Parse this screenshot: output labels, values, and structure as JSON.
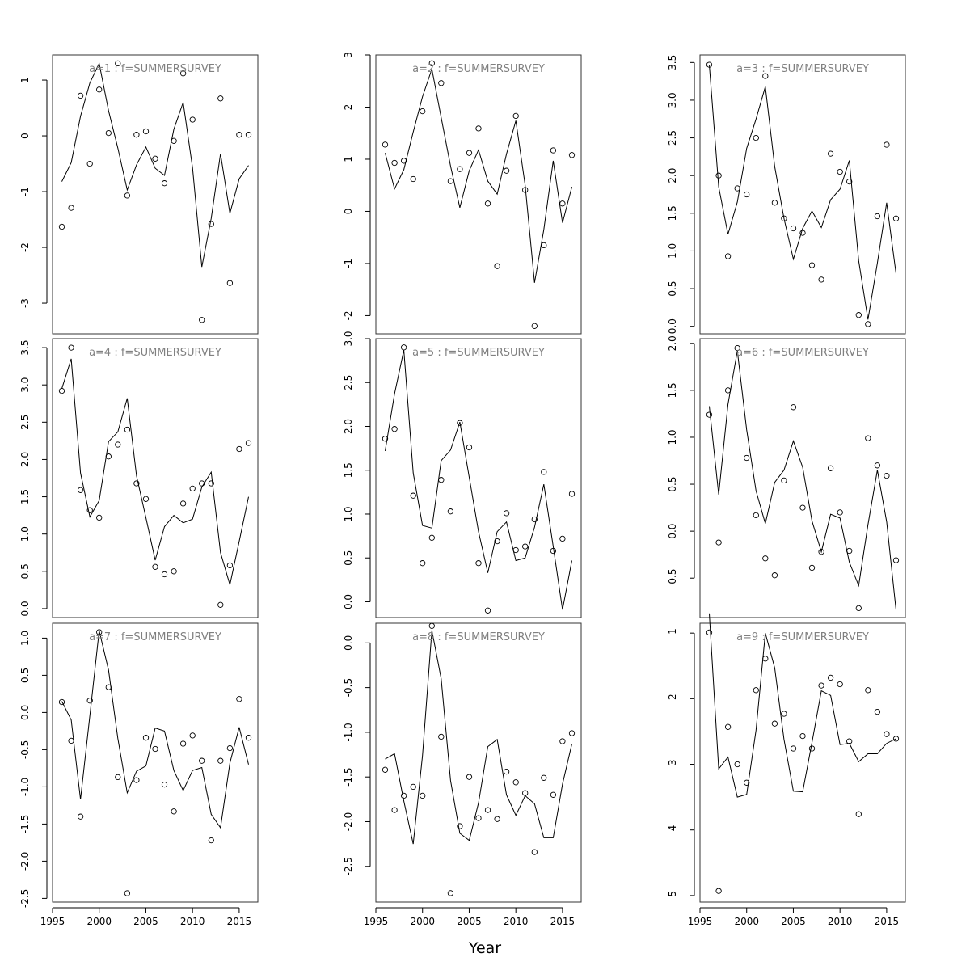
{
  "figure": {
    "xlabel": "Year"
  },
  "chart_data": [
    {
      "type": "line",
      "title": "a=1  :  f=SUMMERSURVEY",
      "xlabel": "",
      "ylabel": "",
      "xlim": [
        1995,
        2017
      ],
      "ylim": [
        -3.55,
        1.45
      ],
      "xticks": [
        1995,
        2000,
        2005,
        2010,
        2015
      ],
      "yticks": [
        -3,
        -2,
        -1,
        0,
        1
      ],
      "ytick_labels": [
        "-3",
        "-2",
        "-1",
        "0",
        "1"
      ],
      "x": [
        1996,
        1997,
        1998,
        1999,
        2000,
        2001,
        2002,
        2003,
        2004,
        2005,
        2006,
        2007,
        2008,
        2009,
        2010,
        2011,
        2012,
        2013,
        2014,
        2015,
        2016
      ],
      "series": [
        {
          "kind": "points",
          "values": [
            -1.63,
            -1.29,
            0.72,
            -0.5,
            0.83,
            0.05,
            1.3,
            -1.07,
            0.02,
            0.08,
            -0.41,
            -0.85,
            -0.09,
            1.12,
            0.29,
            -3.3,
            -1.58,
            0.67,
            -2.64,
            0.02,
            0.02
          ]
        },
        {
          "kind": "line",
          "values": [
            -0.82,
            -0.48,
            0.35,
            0.95,
            1.3,
            0.45,
            -0.22,
            -0.97,
            -0.52,
            -0.2,
            -0.58,
            -0.71,
            0.12,
            0.6,
            -0.57,
            -2.35,
            -1.48,
            -0.32,
            -1.39,
            -0.77,
            -0.53
          ]
        }
      ]
    },
    {
      "type": "line",
      "title": "a=4  :  f=SUMMERSURVEY",
      "xlabel": "",
      "ylabel": "",
      "xlim": [
        1995,
        2017
      ],
      "ylim": [
        -0.12,
        3.62
      ],
      "xticks": [
        1995,
        2000,
        2005,
        2010,
        2015
      ],
      "yticks": [
        0.0,
        0.5,
        1.0,
        1.5,
        2.0,
        2.5,
        3.0,
        3.5
      ],
      "ytick_labels": [
        "0.0",
        "0.5",
        "1.0",
        "1.5",
        "2.0",
        "2.5",
        "3.0",
        "3.5"
      ],
      "x": [
        1996,
        1997,
        1998,
        1999,
        2000,
        2001,
        2002,
        2003,
        2004,
        2005,
        2006,
        2007,
        2008,
        2009,
        2010,
        2011,
        2012,
        2013,
        2014,
        2015,
        2016
      ],
      "series": [
        {
          "kind": "points",
          "values": [
            2.92,
            3.5,
            1.59,
            1.32,
            1.22,
            2.04,
            2.2,
            2.4,
            1.68,
            1.47,
            0.56,
            0.46,
            0.5,
            1.41,
            1.61,
            1.68,
            1.68,
            0.05,
            0.58,
            2.14,
            2.22
          ]
        },
        {
          "kind": "line",
          "values": [
            2.95,
            3.35,
            1.82,
            1.23,
            1.45,
            2.24,
            2.37,
            2.82,
            1.78,
            1.22,
            0.65,
            1.1,
            1.25,
            1.15,
            1.2,
            1.63,
            1.83,
            0.75,
            0.32,
            0.9,
            1.5
          ]
        }
      ]
    },
    {
      "type": "line",
      "title": "a=7  :  f=SUMMERSURVEY",
      "xlabel": "",
      "ylabel": "",
      "xlim": [
        1995,
        2017
      ],
      "ylim": [
        -2.55,
        1.2
      ],
      "xticks": [
        1995,
        2000,
        2005,
        2010,
        2015
      ],
      "yticks": [
        -2.5,
        -2.0,
        -1.5,
        -1.0,
        -0.5,
        0.0,
        0.5,
        1.0
      ],
      "ytick_labels": [
        "-2.5",
        "-2.0",
        "-1.5",
        "-1.0",
        "-0.5",
        "0.0",
        "0.5",
        "1.0"
      ],
      "x": [
        1996,
        1997,
        1998,
        1999,
        2000,
        2001,
        2002,
        2003,
        2004,
        2005,
        2006,
        2007,
        2008,
        2009,
        2010,
        2011,
        2012,
        2013,
        2014,
        2015,
        2016
      ],
      "series": [
        {
          "kind": "points",
          "values": [
            0.14,
            -0.38,
            -1.4,
            0.16,
            1.08,
            0.34,
            -0.87,
            -2.43,
            -0.91,
            -0.34,
            -0.49,
            -0.97,
            -1.33,
            -0.42,
            -0.31,
            -0.65,
            -1.72,
            -0.65,
            -0.48,
            0.18,
            -0.34
          ]
        },
        {
          "kind": "line",
          "values": [
            0.15,
            -0.1,
            -1.17,
            -0.04,
            1.1,
            0.57,
            -0.35,
            -1.08,
            -0.79,
            -0.72,
            -0.21,
            -0.25,
            -0.78,
            -1.05,
            -0.78,
            -0.74,
            -1.37,
            -1.55,
            -0.68,
            -0.2,
            -0.7
          ]
        }
      ]
    },
    {
      "type": "line",
      "title": "a=2  :  f=SUMMERSURVEY",
      "xlabel": "",
      "ylabel": "",
      "xlim": [
        1995,
        2017
      ],
      "ylim": [
        -2.35,
        3.0
      ],
      "xticks": [
        1995,
        2000,
        2005,
        2010,
        2015
      ],
      "yticks": [
        -2,
        -1,
        0,
        1,
        2,
        3
      ],
      "ytick_labels": [
        "-2",
        "-1",
        "0",
        "1",
        "2",
        "3"
      ],
      "x": [
        1996,
        1997,
        1998,
        1999,
        2000,
        2001,
        2002,
        2003,
        2004,
        2005,
        2006,
        2007,
        2008,
        2009,
        2010,
        2011,
        2012,
        2013,
        2014,
        2015,
        2016
      ],
      "series": [
        {
          "kind": "points",
          "values": [
            1.28,
            0.93,
            0.97,
            0.62,
            1.92,
            2.84,
            2.46,
            0.58,
            0.81,
            1.12,
            1.59,
            0.15,
            -1.05,
            0.78,
            1.83,
            0.41,
            -2.2,
            -0.65,
            1.17,
            0.15,
            1.08
          ]
        },
        {
          "kind": "line",
          "values": [
            1.12,
            0.43,
            0.8,
            1.52,
            2.2,
            2.73,
            1.8,
            0.87,
            0.07,
            0.78,
            1.18,
            0.58,
            0.33,
            1.1,
            1.74,
            0.5,
            -1.37,
            -0.35,
            0.97,
            -0.22,
            0.47
          ]
        }
      ]
    },
    {
      "type": "line",
      "title": "a=5  :  f=SUMMERSURVEY",
      "xlabel": "",
      "ylabel": "",
      "xlim": [
        1995,
        2017
      ],
      "ylim": [
        -0.18,
        3.0
      ],
      "xticks": [
        1995,
        2000,
        2005,
        2010,
        2015
      ],
      "yticks": [
        0.0,
        0.5,
        1.0,
        1.5,
        2.0,
        2.5,
        3.0
      ],
      "ytick_labels": [
        "0.0",
        "0.5",
        "1.0",
        "1.5",
        "2.0",
        "2.5",
        "3.0"
      ],
      "x": [
        1996,
        1997,
        1998,
        1999,
        2000,
        2001,
        2002,
        2003,
        2004,
        2005,
        2006,
        2007,
        2008,
        2009,
        2010,
        2011,
        2012,
        2013,
        2014,
        2015,
        2016
      ],
      "series": [
        {
          "kind": "points",
          "values": [
            1.86,
            1.97,
            2.9,
            1.21,
            0.44,
            0.73,
            1.39,
            1.03,
            2.04,
            1.76,
            0.44,
            -0.1,
            0.69,
            1.01,
            0.59,
            0.63,
            0.94,
            1.48,
            0.58,
            0.72,
            1.23
          ]
        },
        {
          "kind": "line",
          "values": [
            1.72,
            2.37,
            2.87,
            1.47,
            0.87,
            0.84,
            1.61,
            1.73,
            2.05,
            1.42,
            0.8,
            0.33,
            0.8,
            0.91,
            0.47,
            0.5,
            0.85,
            1.34,
            0.63,
            -0.09,
            0.47
          ]
        }
      ]
    },
    {
      "type": "line",
      "title": "a=8  :  f=SUMMERSURVEY",
      "xlabel": "",
      "ylabel": "",
      "xlim": [
        1995,
        2017
      ],
      "ylim": [
        -2.9,
        0.22
      ],
      "xticks": [
        1995,
        2000,
        2005,
        2010,
        2015
      ],
      "yticks": [
        -2.5,
        -2.0,
        -1.5,
        -1.0,
        -0.5,
        0.0
      ],
      "ytick_labels": [
        "-2.5",
        "-2.0",
        "-1.5",
        "-1.0",
        "-0.5",
        "0.0"
      ],
      "x": [
        1996,
        1997,
        1998,
        1999,
        2000,
        2001,
        2002,
        2003,
        2004,
        2005,
        2006,
        2007,
        2008,
        2009,
        2010,
        2011,
        2012,
        2013,
        2014,
        2015,
        2016
      ],
      "series": [
        {
          "kind": "points",
          "values": [
            -1.42,
            -1.87,
            -1.71,
            -1.61,
            -1.71,
            0.19,
            -1.05,
            -2.8,
            -2.05,
            -1.5,
            -1.96,
            -1.87,
            -1.97,
            -1.44,
            -1.56,
            -1.68,
            -2.34,
            -1.51,
            -1.7,
            -1.1,
            -1.01
          ]
        },
        {
          "kind": "line",
          "values": [
            -1.3,
            -1.24,
            -1.77,
            -2.25,
            -1.26,
            0.14,
            -0.4,
            -1.54,
            -2.13,
            -2.21,
            -1.79,
            -1.16,
            -1.08,
            -1.7,
            -1.93,
            -1.71,
            -1.8,
            -2.18,
            -2.18,
            -1.58,
            -1.13
          ]
        }
      ]
    },
    {
      "type": "line",
      "title": "a=3  :  f=SUMMERSURVEY",
      "xlabel": "",
      "ylabel": "",
      "xlim": [
        1995,
        2017
      ],
      "ylim": [
        -0.1,
        3.6
      ],
      "xticks": [
        1995,
        2000,
        2005,
        2010,
        2015
      ],
      "yticks": [
        0.0,
        0.5,
        1.0,
        1.5,
        2.0,
        2.5,
        3.0,
        3.5
      ],
      "ytick_labels": [
        "0.0",
        "0.5",
        "1.0",
        "1.5",
        "2.0",
        "2.5",
        "3.0",
        "3.5"
      ],
      "x": [
        1996,
        1997,
        1998,
        1999,
        2000,
        2001,
        2002,
        2003,
        2004,
        2005,
        2006,
        2007,
        2008,
        2009,
        2010,
        2011,
        2012,
        2013,
        2014,
        2015,
        2016
      ],
      "series": [
        {
          "kind": "points",
          "values": [
            3.47,
            2.0,
            0.93,
            1.83,
            1.75,
            2.5,
            3.32,
            1.64,
            1.43,
            1.3,
            1.24,
            0.81,
            0.62,
            2.29,
            2.05,
            1.92,
            0.15,
            0.03,
            1.46,
            2.41,
            1.43
          ]
        },
        {
          "kind": "line",
          "values": [
            3.47,
            1.85,
            1.22,
            1.65,
            2.36,
            2.75,
            3.18,
            2.12,
            1.43,
            0.89,
            1.3,
            1.53,
            1.31,
            1.68,
            1.82,
            2.2,
            0.87,
            0.09,
            0.84,
            1.64,
            0.7
          ]
        }
      ]
    },
    {
      "type": "line",
      "title": "a=6  :  f=SUMMERSURVEY",
      "xlabel": "",
      "ylabel": "",
      "xlim": [
        1995,
        2017
      ],
      "ylim": [
        -0.92,
        2.05
      ],
      "xticks": [
        1995,
        2000,
        2005,
        2010,
        2015
      ],
      "yticks": [
        -0.5,
        0.0,
        0.5,
        1.0,
        1.5,
        2.0
      ],
      "ytick_labels": [
        "-0.5",
        "0.0",
        "0.5",
        "1.0",
        "1.5",
        "2.0"
      ],
      "x": [
        1996,
        1997,
        1998,
        1999,
        2000,
        2001,
        2002,
        2003,
        2004,
        2005,
        2006,
        2007,
        2008,
        2009,
        2010,
        2011,
        2012,
        2013,
        2014,
        2015,
        2016
      ],
      "series": [
        {
          "kind": "points",
          "values": [
            1.24,
            -0.12,
            1.5,
            1.95,
            0.78,
            0.17,
            -0.29,
            -0.47,
            0.54,
            1.32,
            0.25,
            -0.39,
            -0.22,
            0.67,
            0.2,
            -0.21,
            -0.82,
            0.99,
            0.7,
            0.59,
            -0.31
          ]
        },
        {
          "kind": "line",
          "values": [
            1.33,
            0.39,
            1.35,
            1.92,
            1.08,
            0.43,
            0.08,
            0.52,
            0.65,
            0.96,
            0.68,
            0.11,
            -0.22,
            0.18,
            0.14,
            -0.33,
            -0.58,
            0.07,
            0.65,
            0.1,
            -0.84
          ]
        }
      ]
    },
    {
      "type": "line",
      "title": "a=9  :  f=SUMMERSURVEY",
      "xlabel": "",
      "ylabel": "",
      "xlim": [
        1995,
        2017
      ],
      "ylim": [
        -5.1,
        -0.85
      ],
      "xticks": [
        1995,
        2000,
        2005,
        2010,
        2015
      ],
      "yticks": [
        -5,
        -4,
        -3,
        -2,
        -1
      ],
      "ytick_labels": [
        "-5",
        "-4",
        "-3",
        "-2",
        "-1"
      ],
      "x": [
        1996,
        1997,
        1998,
        1999,
        2000,
        2001,
        2002,
        2003,
        2004,
        2005,
        2006,
        2007,
        2008,
        2009,
        2010,
        2011,
        2012,
        2013,
        2014,
        2015,
        2016
      ],
      "series": [
        {
          "kind": "points",
          "values": [
            -0.99,
            -4.93,
            -2.43,
            -3.0,
            -3.28,
            -1.87,
            -1.39,
            -2.38,
            -2.23,
            -2.76,
            -2.57,
            -2.76,
            -1.8,
            -1.68,
            -1.78,
            -2.65,
            -3.76,
            -1.87,
            -2.2,
            -2.54,
            -2.61
          ]
        },
        {
          "kind": "line",
          "values": [
            -0.7,
            -3.07,
            -2.89,
            -3.5,
            -3.46,
            -2.48,
            -1.0,
            -1.53,
            -2.62,
            -3.41,
            -3.42,
            -2.67,
            -1.88,
            -1.95,
            -2.7,
            -2.68,
            -2.96,
            -2.84,
            -2.84,
            -2.68,
            -2.61
          ]
        }
      ]
    }
  ]
}
